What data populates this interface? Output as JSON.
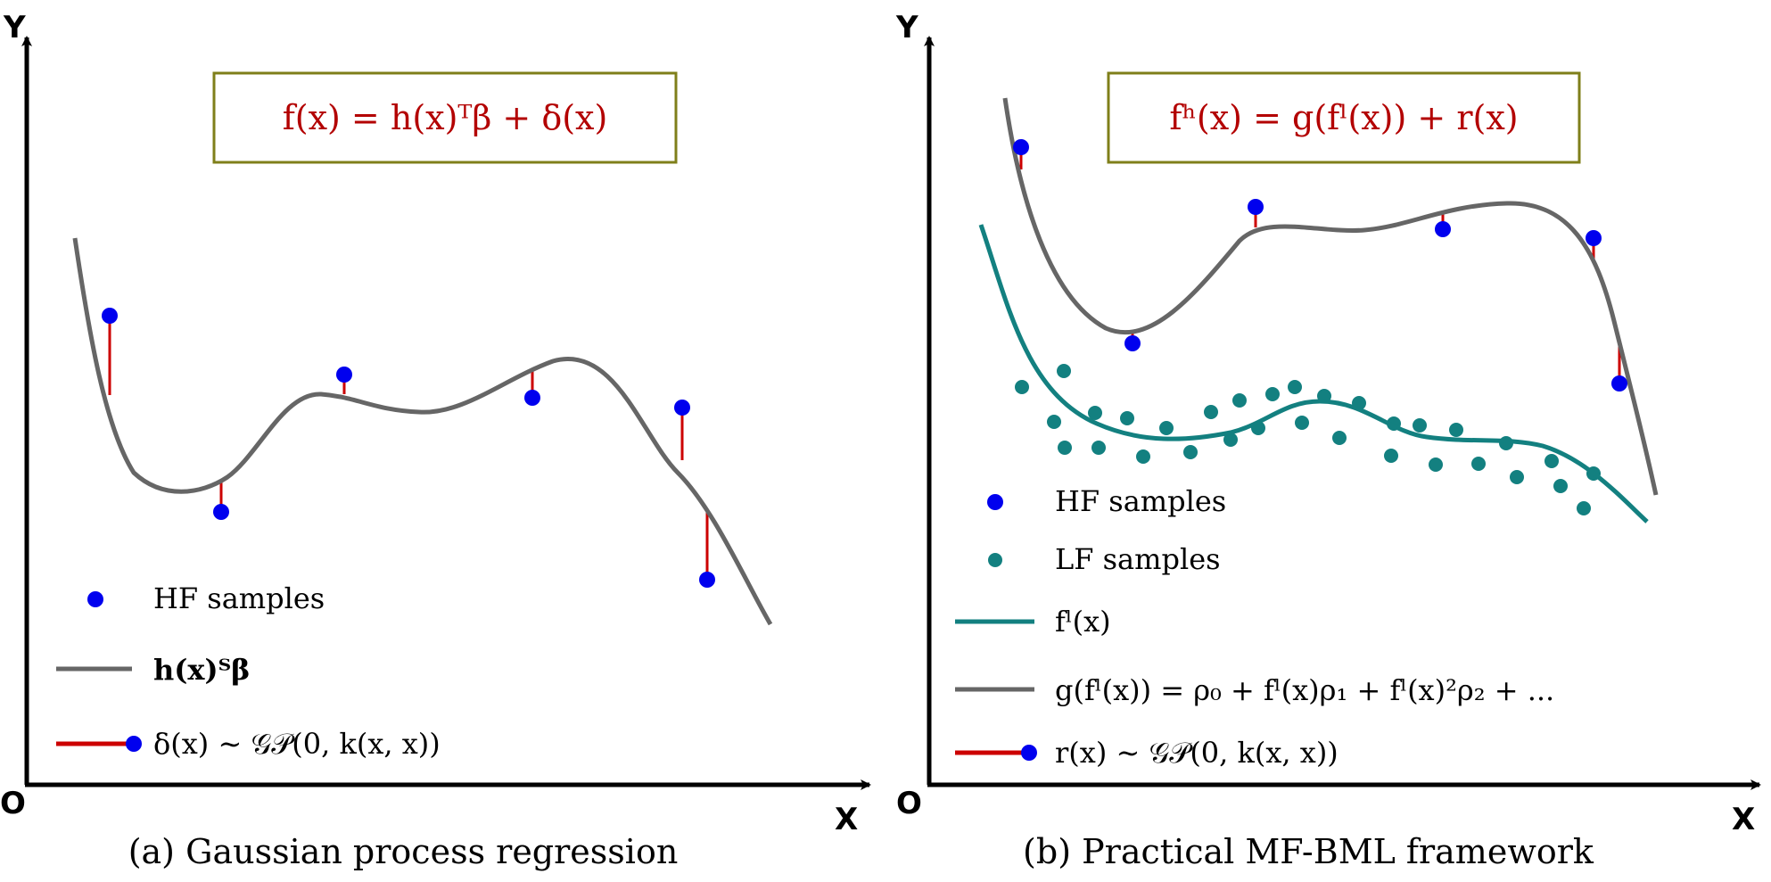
{
  "colors": {
    "hf_sample": "#0000ee",
    "lf_sample": "#138080",
    "mean_curve": "#666666",
    "lf_curve": "#138080",
    "residual": "#cc0000",
    "equation_text": "#b30000",
    "equation_border": "#7f7f1a",
    "axis": "#000000"
  },
  "panel_a": {
    "axis_y": "Y",
    "axis_x": "X",
    "origin": "O",
    "equation": "f(x) = h(x)ᵀβ + δ(x)",
    "legend": {
      "hf_samples": "HF samples",
      "mean": "h(x)ᵀβ",
      "residual": "δ(x) ∼ 𝒢𝒫(0, k(x, x))"
    },
    "caption": "(a) Gaussian process regression"
  },
  "panel_b": {
    "axis_y": "Y",
    "axis_x": "X",
    "origin": "O",
    "equation": "fʰ(x) = g(fˡ(x)) + r(x)",
    "legend": {
      "hf_samples": "HF samples",
      "lf_samples": "LF samples",
      "lf_model": "fˡ(x)",
      "mapping": "g(fˡ(x)) = ρ₀ + fˡ(x)ρ₁ + fˡ(x)²ρ₂ + ...",
      "residual": "r(x) ∼ 𝒢𝒫(0, k(x, x))"
    },
    "caption": "(b) Practical MF-BML framework"
  }
}
